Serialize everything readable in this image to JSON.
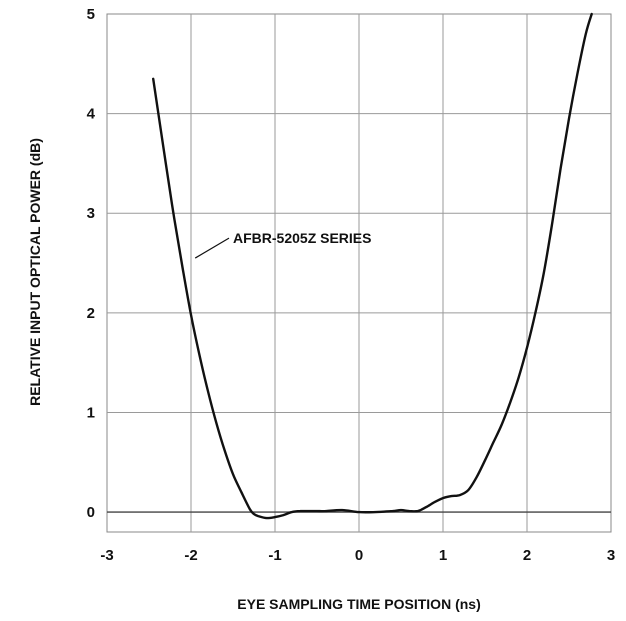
{
  "chart_data": {
    "type": "line",
    "title": "",
    "xlabel": "EYE SAMPLING TIME POSITION (ns)",
    "ylabel": "RELATIVE INPUT OPTICAL POWER (dB)",
    "xlim": [
      -3,
      3
    ],
    "ylim": [
      -0.2,
      5
    ],
    "x_ticks": [
      "-3",
      "-2",
      "-1",
      "0",
      "1",
      "2",
      "3"
    ],
    "y_ticks": [
      "0",
      "1",
      "2",
      "3",
      "4",
      "5"
    ],
    "grid": true,
    "legend": "none",
    "series": [
      {
        "name": "AFBR-5205Z SERIES",
        "color": "#111111",
        "x": [
          -2.45,
          -2.3,
          -2.2,
          -2.1,
          -2.0,
          -1.9,
          -1.8,
          -1.7,
          -1.6,
          -1.5,
          -1.4,
          -1.3,
          -1.25,
          -1.2,
          -1.1,
          -1.0,
          -0.9,
          -0.8,
          -0.7,
          -0.6,
          -0.5,
          -0.4,
          -0.2,
          0.0,
          0.2,
          0.4,
          0.5,
          0.6,
          0.7,
          0.8,
          0.9,
          1.0,
          1.1,
          1.2,
          1.3,
          1.4,
          1.5,
          1.6,
          1.7,
          1.8,
          1.9,
          2.0,
          2.1,
          2.2,
          2.3,
          2.4,
          2.5,
          2.6,
          2.7,
          2.77
        ],
        "y": [
          4.35,
          3.5,
          2.95,
          2.45,
          1.98,
          1.58,
          1.22,
          0.9,
          0.62,
          0.38,
          0.2,
          0.03,
          -0.02,
          -0.04,
          -0.06,
          -0.05,
          -0.03,
          0.0,
          0.01,
          0.01,
          0.01,
          0.01,
          0.02,
          0.0,
          0.0,
          0.01,
          0.02,
          0.01,
          0.01,
          0.05,
          0.1,
          0.14,
          0.16,
          0.17,
          0.22,
          0.35,
          0.52,
          0.7,
          0.88,
          1.1,
          1.35,
          1.65,
          2.0,
          2.4,
          2.9,
          3.45,
          3.95,
          4.4,
          4.8,
          5.0
        ]
      }
    ],
    "annotation": {
      "text": "AFBR-5205Z SERIES",
      "x": -1.5,
      "y": 2.7,
      "pointer_to": [
        -1.95,
        2.55
      ]
    }
  }
}
